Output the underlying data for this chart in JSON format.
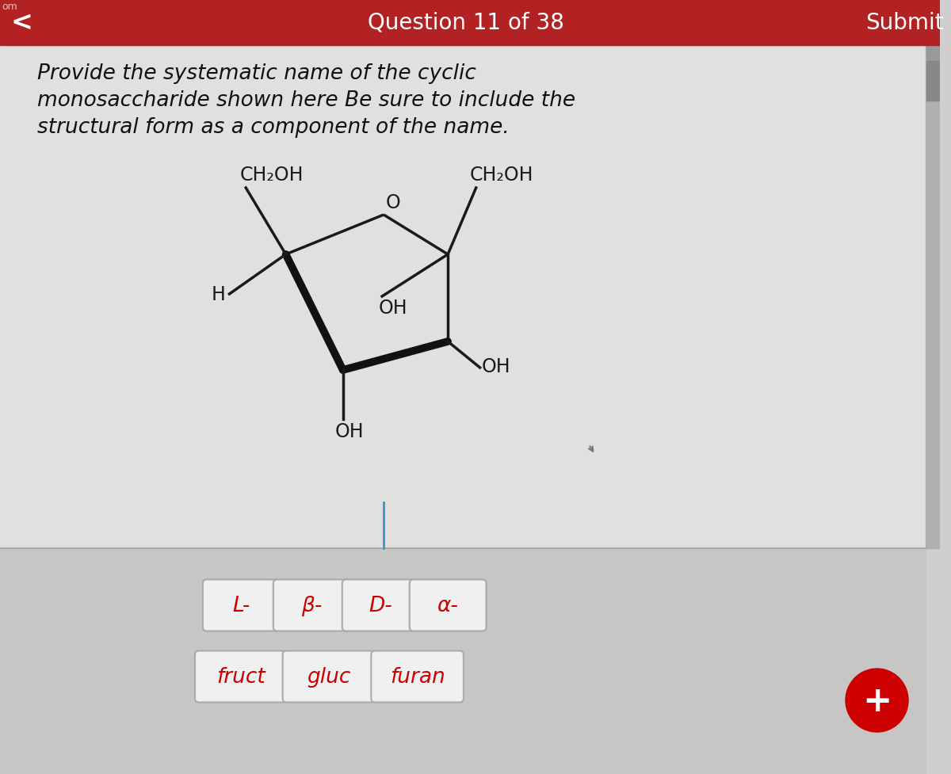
{
  "bg_color": "#d0cece",
  "header_color": "#b22222",
  "header_text": "Question 11 of 38",
  "submit_text": "Submit",
  "back_arrow": "<",
  "question_text": "Provide the systematic name of the cyclic\nmonosaccharide shown here Be sure to include the\nstructural form as a component of the name.",
  "molecule_labels": {
    "ch2oh_left": "CH₂OH",
    "ch2oh_right": "CH₂OH",
    "O": "O",
    "OH_top": "OH",
    "OH_right": "OH",
    "H": "H",
    "OH_bottom": "OH"
  },
  "buttons_row1": [
    "L-",
    "β-",
    "D-",
    "α-"
  ],
  "buttons_row2": [
    "fruct",
    "gluc",
    "furan"
  ],
  "button_text_color": "#cc0000",
  "button_border_color": "#aaaaaa",
  "button_bg_color": "#f0f0f0",
  "plus_button_color": "#cc0000",
  "content_bg": "#e2e0df",
  "lower_bg": "#c8c6c5",
  "molecule_color": "#1a1a1a",
  "bold_bond_color": "#111111",
  "cursor_color": "#777777",
  "scrollbar_color": "#b0b0b0",
  "scrollhandle_color": "#888888"
}
